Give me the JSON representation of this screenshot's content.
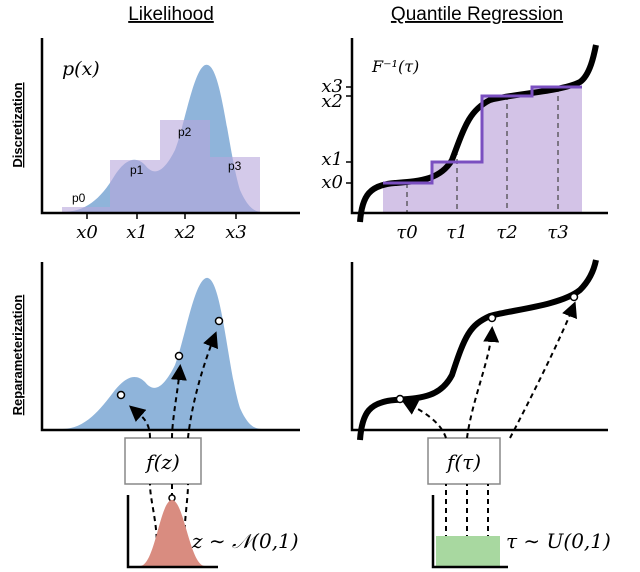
{
  "titles": {
    "left": "Likelihood",
    "right": "Quantile Regression"
  },
  "row_labels": {
    "top": "Discretization",
    "bottom": "Reparameterization"
  },
  "top_left": {
    "y_label": "p(x)",
    "bin_labels": [
      "p0",
      "p1",
      "p2",
      "p3"
    ],
    "x_ticks": [
      "x0",
      "x1",
      "x2",
      "x3"
    ]
  },
  "top_right": {
    "y_label": "F⁻¹(τ)",
    "y_ticks": [
      "x3",
      "x2",
      "x1",
      "x0"
    ],
    "x_ticks": [
      "τ0",
      "τ1",
      "τ2",
      "τ3"
    ]
  },
  "bottom_left": {
    "func_label": "f(z)",
    "dist_label": "z ∼ 𝒩(0,1)"
  },
  "bottom_right": {
    "func_label": "f(τ)",
    "dist_label": "τ ∼ U(0,1)"
  },
  "colors": {
    "density": "#8fb4da",
    "hist": "#cbb9e3",
    "step": "#7a4fc0",
    "normal": "#d98c80",
    "uniform": "#a8d8a0"
  }
}
